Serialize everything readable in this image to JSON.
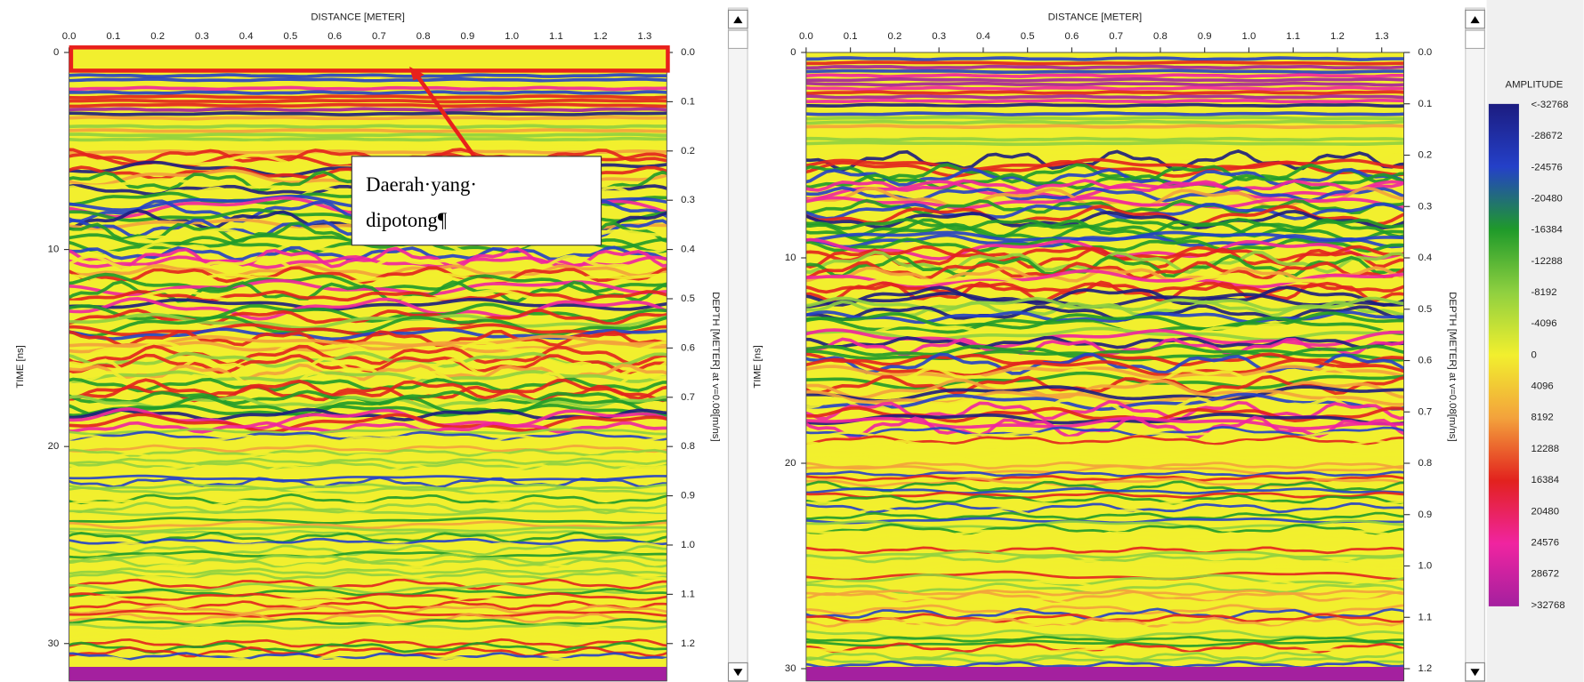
{
  "chart_data": [
    {
      "type": "radargram",
      "x_label": "DISTANCE [METER]",
      "y_label": "TIME [ns]",
      "y2_label": "DEPTH [METER] at v=0.08[m/ns]",
      "xlim": [
        0,
        1.35
      ],
      "xticks": [
        {
          "value": 0,
          "label": "0.0"
        },
        0.1,
        0.2,
        0.3,
        0.4,
        0.5,
        0.6,
        0.7,
        0.8,
        0.9,
        {
          "value": 1,
          "label": "1.0"
        },
        1.1,
        1.2,
        1.3
      ],
      "ylim": [
        0,
        31.9
      ],
      "yticks": [
        0,
        10,
        20,
        30
      ],
      "y2lim": [
        0,
        1.276
      ],
      "y2ticks": [
        {
          "value": 0,
          "label": "0.0"
        },
        0.1,
        0.2,
        0.3,
        0.4,
        0.5,
        0.6,
        0.7,
        0.8,
        0.9,
        {
          "value": 1,
          "label": "1.0"
        },
        1.1,
        1.2
      ]
    },
    {
      "type": "radargram",
      "x_label": "DISTANCE [METER]",
      "y_label": "TIME [ns]",
      "y2_label": "DEPTH [METER] at v=0.08[m/ns]",
      "xlim": [
        0,
        1.35
      ],
      "xticks": [
        {
          "value": 0,
          "label": "0.0"
        },
        0.1,
        0.2,
        0.3,
        0.4,
        0.5,
        0.6,
        0.7,
        0.8,
        0.9,
        {
          "value": 1,
          "label": "1.0"
        },
        1.1,
        1.2,
        1.3
      ],
      "ylim": [
        0,
        30.6
      ],
      "yticks": [
        0,
        10,
        20,
        30
      ],
      "y2lim": [
        0,
        1.224
      ],
      "y2ticks": [
        {
          "value": 0,
          "label": "0.0"
        },
        0.1,
        0.2,
        0.3,
        0.4,
        0.5,
        0.6,
        0.7,
        0.8,
        0.9,
        {
          "value": 1,
          "label": "1.0"
        },
        1.1,
        1.2
      ]
    }
  ],
  "colorbar": {
    "title": "AMPLITUDE",
    "colors": [
      "#1c1c80",
      "#2440c8",
      "#1f9a2a",
      "#8fd040",
      "#f2ef2e",
      "#f3a23c",
      "#e2221e",
      "#f024a0",
      "#a4209f"
    ],
    "ticks": [
      {
        "value": -32768,
        "label": "<-32768"
      },
      -28672,
      -24576,
      -20480,
      -16384,
      -12288,
      -8192,
      -4096,
      0,
      4096,
      8192,
      12288,
      16384,
      20480,
      24576,
      28672,
      {
        "value": 32768,
        "label": ">32768"
      }
    ]
  },
  "annotation": {
    "lines": [
      "Daerah·yang·",
      "dipotong¶"
    ]
  }
}
